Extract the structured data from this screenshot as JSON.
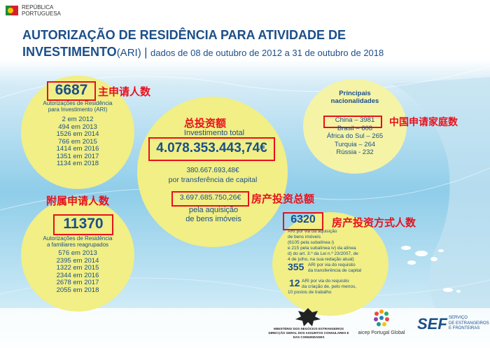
{
  "header": {
    "logo_line1": "REPÚBLICA",
    "logo_line2": "PORTUGUESA",
    "title_line1": "AUTORIZAÇÃO DE RESIDÊNCIA PARA ATIVIDADE DE",
    "title_bold": "INVESTIMENTO",
    "title_abbr": "(ARI)",
    "title_sep": "|",
    "title_dates": "dados de 08 de outubro de 2012 a 31 de outubro de 2018"
  },
  "main_applicants": {
    "count": "6687",
    "annotation": "主申请人数",
    "label_line1": "Autorizações de Residência",
    "label_line2": "para Investimento (ARI)",
    "years": [
      "2 em 2012",
      "494 em 2013",
      "1526 em 2014",
      "766 em 2015",
      "1414 em 2016",
      "1351 em 2017",
      "1134 em 2018"
    ]
  },
  "family": {
    "annotation": "附属申请人数",
    "count": "11370",
    "label_line1": "Autorizações de Residência",
    "label_line2": "a familiares reagrupados",
    "years": [
      "576 em 2013",
      "2395 em 2014",
      "1322 em 2015",
      "2344 em 2016",
      "2678 em 2017",
      "2055 em 2018"
    ]
  },
  "investment": {
    "annotation": "总投资额",
    "label": "Investimento total",
    "total": "4.078.353.443,74€",
    "transfer_amount": "380.667.693,48€",
    "transfer_label": "por transferência de capital",
    "realestate_amount": "3.697.685.750,26€",
    "realestate_annotation": "房产投资总额",
    "realestate_label_line1": "pela aquisição",
    "realestate_label_line2": "de bens imóveis"
  },
  "nationalities": {
    "title_line1": "Principais",
    "title_line2": "nacionalidades",
    "annotation": "中国申请家庭数",
    "items": [
      "China – 3981",
      "Brasil – 608",
      "África do Sul – 265",
      "Turquia – 264",
      "Rússia - 232"
    ]
  },
  "methods": {
    "count": "6320",
    "annotation": "房产投资方式人数",
    "desc_lines": [
      "ARI por via da aquisição",
      "de bens imóveis",
      "(6105 pela subalínea i)",
      "e 215 pela subalínea iv) da alínea",
      "d) do art. 3.º da Lei n.º 23/2007, de",
      "4 de julho, na sua redação atual)"
    ],
    "capital_count": "355",
    "capital_line1": "ARI por via do requisito",
    "capital_line2": "da transferência de capital",
    "jobs_count": "12",
    "jobs_lines": [
      "ARI por via do requisito",
      "da criação de, pelo menos,",
      "10 postos de trabalho"
    ]
  },
  "footer": {
    "ministry_line1": "MINISTÉRIO DOS NEGÓCIOS ESTRANGEIROS",
    "ministry_line2": "DIRECÇÃO GERAL DOS ASSUNTOS CONSULARES E",
    "ministry_line3": "DAS COMUNIDADES",
    "aicep": "aicep Portugal Global",
    "sef": "SEF",
    "sef_line1": "SERVIÇO",
    "sef_line2": "DE ESTRANGEIROS",
    "sef_line3": "E FRONTEIRAS"
  },
  "colors": {
    "circle": "#f1ef85",
    "title_blue": "#1b4f8a",
    "annotation_red": "#e8101c"
  }
}
